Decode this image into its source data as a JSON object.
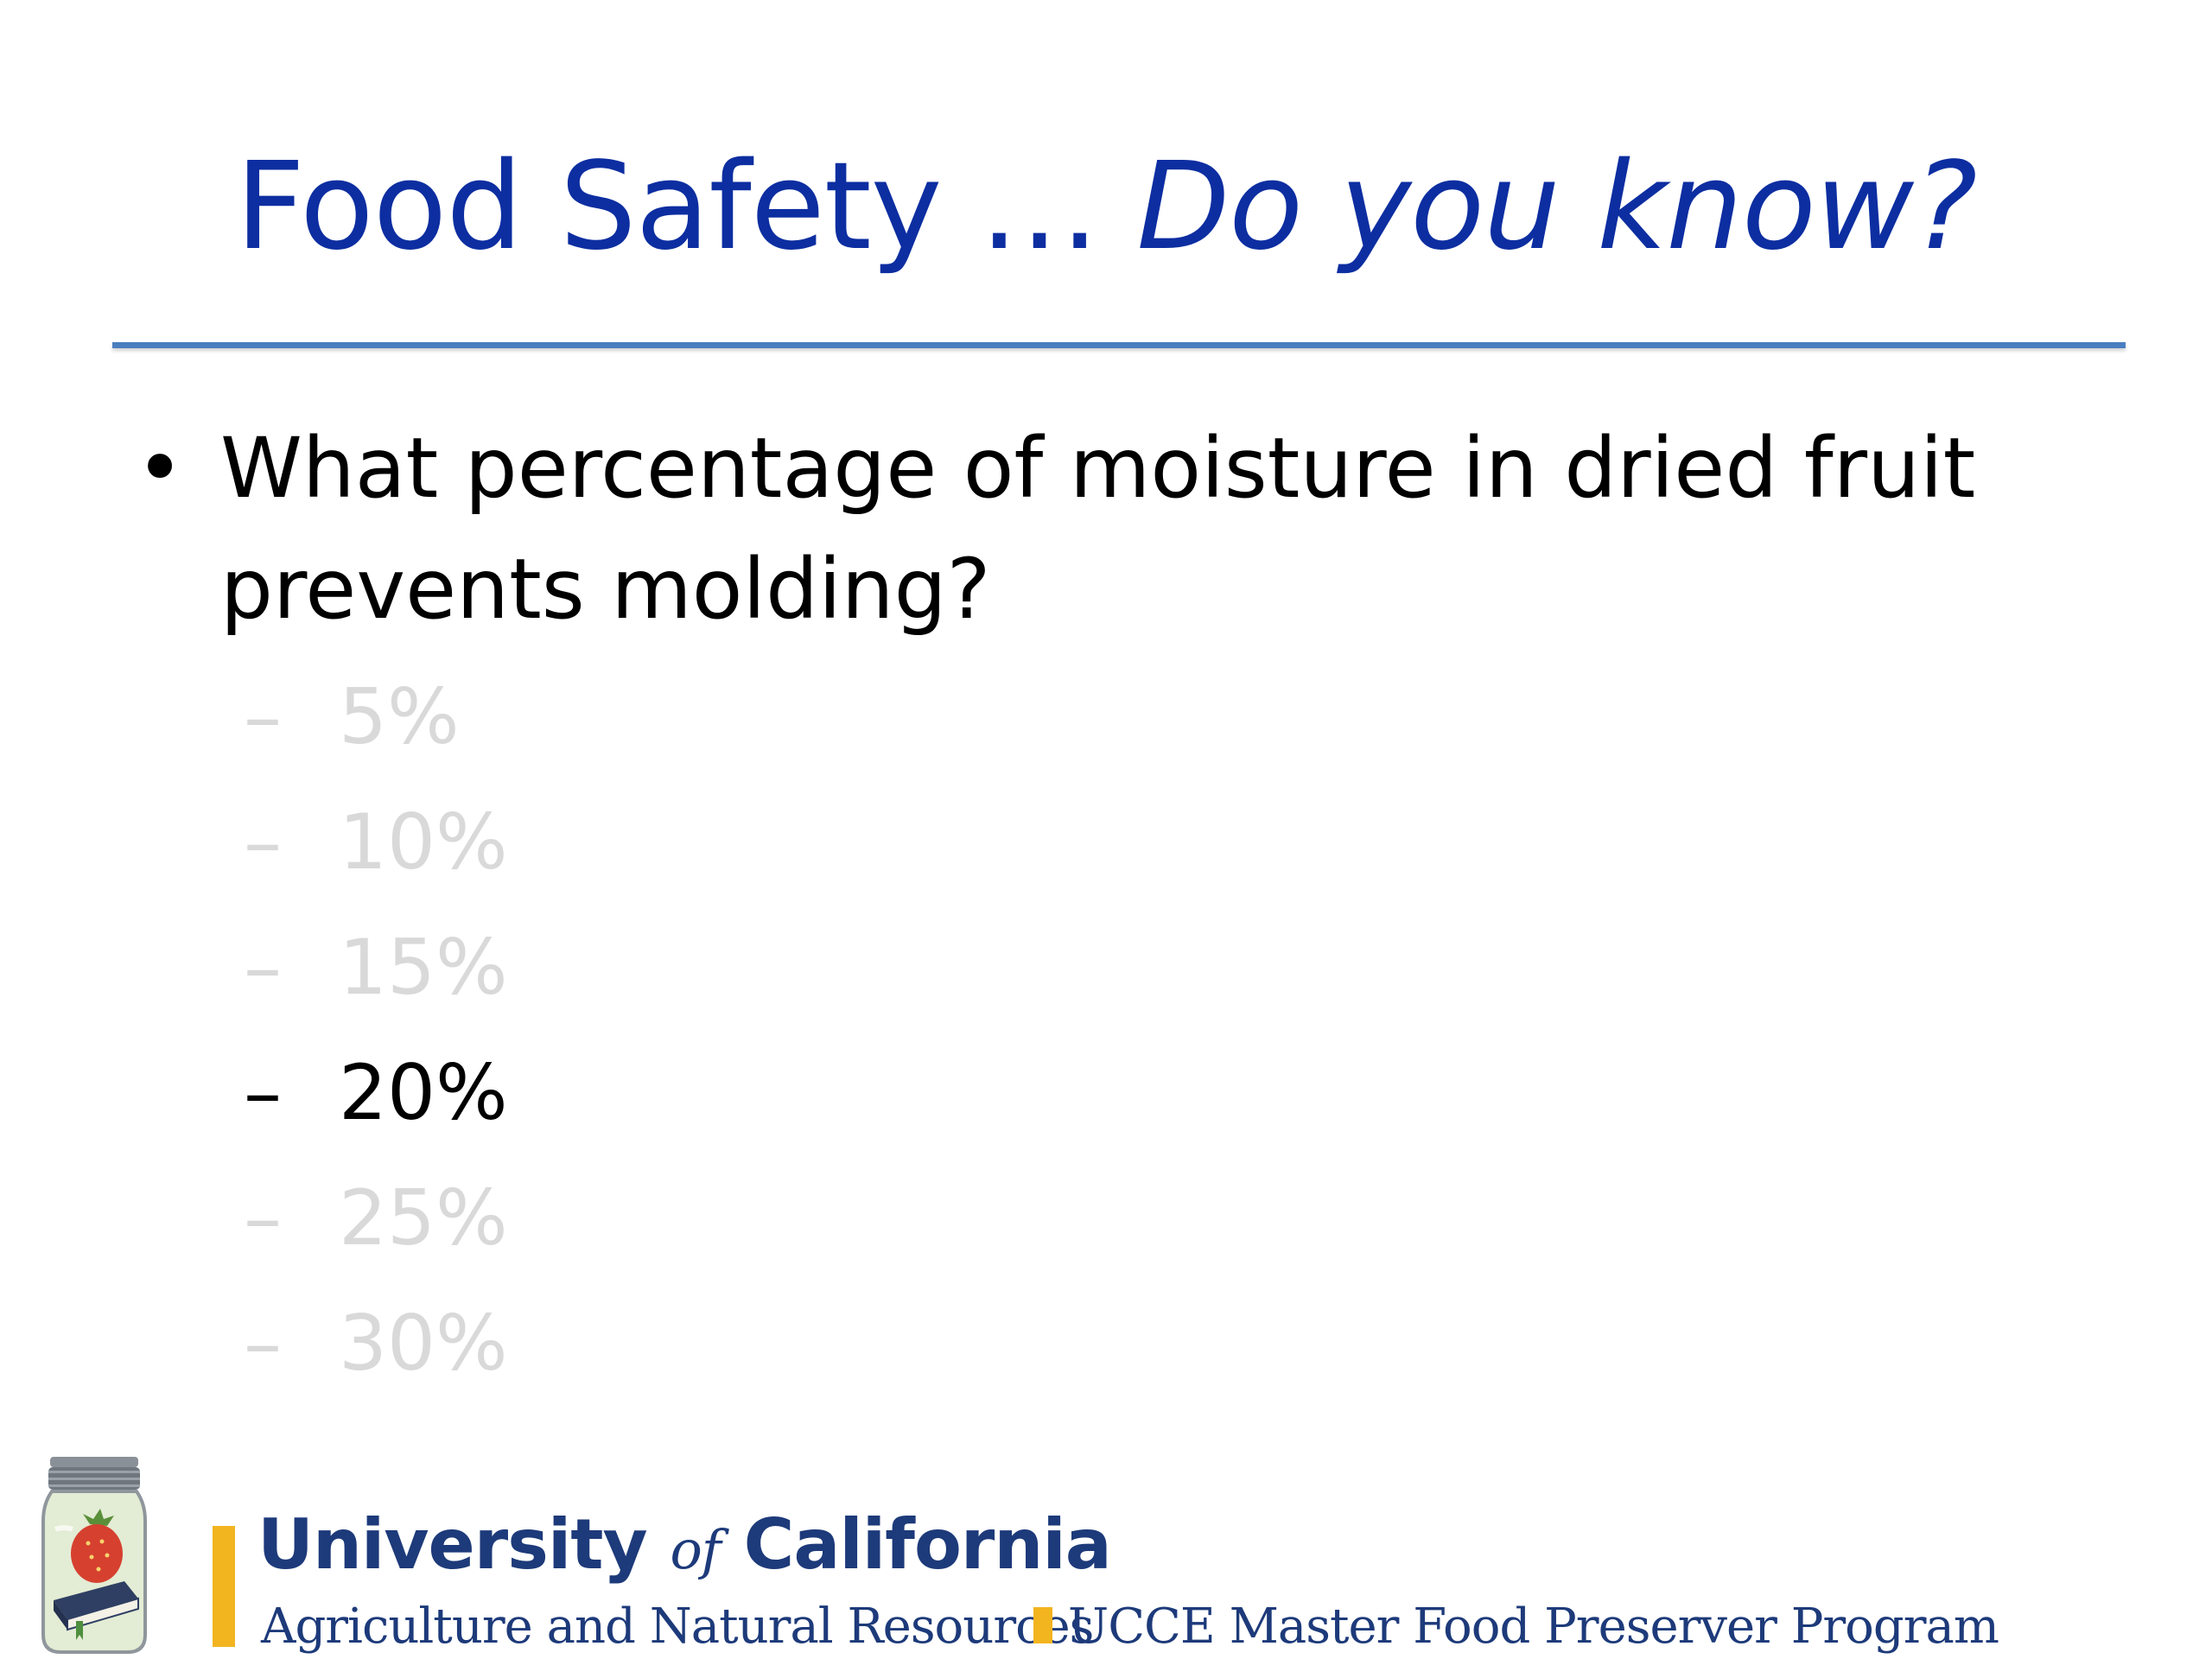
{
  "slide": {
    "title": {
      "main": "Food Safety … ",
      "emphasis": "Do you know?"
    },
    "question": {
      "bullet": "•",
      "text": "What percentage of moisture in dried fruit prevents molding?"
    },
    "answers": [
      {
        "dash": "–",
        "label": "5%",
        "correct": false
      },
      {
        "dash": "–",
        "label": "10%",
        "correct": false
      },
      {
        "dash": "–",
        "label": "15%",
        "correct": false
      },
      {
        "dash": "–",
        "label": "20%",
        "correct": true
      },
      {
        "dash": "–",
        "label": "25%",
        "correct": false
      },
      {
        "dash": "–",
        "label": "30%",
        "correct": false
      }
    ]
  },
  "footer": {
    "logo_icon": "mason-jar-strawberry-book-icon",
    "university_prefix": "University ",
    "university_of": "of",
    "university_suffix": " California",
    "division": "Agriculture and Natural Resources",
    "program": "UCCE Master Food Preserver Program"
  },
  "colors": {
    "title_blue": "#0d2ea1",
    "rule_blue": "#4a7ec0",
    "answer_dim": "#d9d9d9",
    "answer_correct": "#000000",
    "uc_blue": "#1d3a7a",
    "uc_gold": "#f2b41f"
  }
}
